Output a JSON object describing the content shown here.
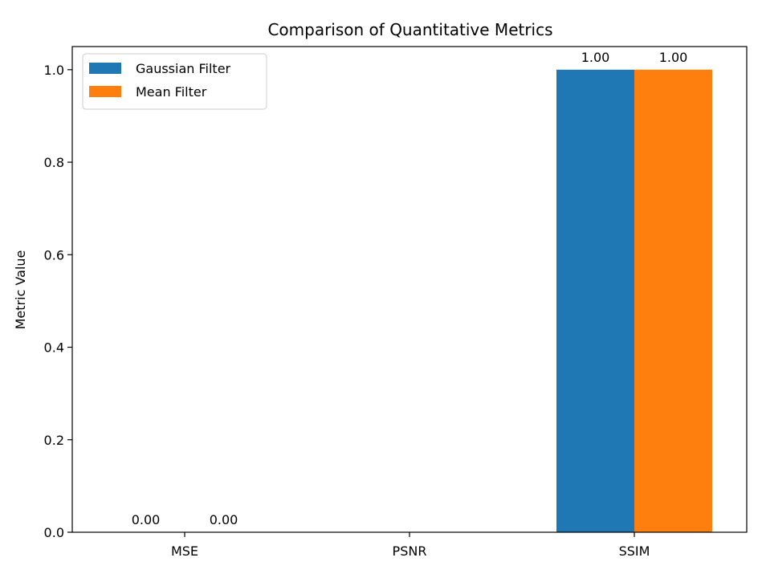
{
  "chart_data": {
    "type": "bar",
    "title": "Comparison of Quantitative Metrics",
    "xlabel": "",
    "ylabel": "Metric Value",
    "categories": [
      "MSE",
      "PSNR",
      "SSIM"
    ],
    "series": [
      {
        "name": "Gaussian Filter",
        "color": "#1f77b4",
        "values": [
          0.0,
          null,
          1.0
        ],
        "labels": [
          "0.00",
          "",
          "1.00"
        ]
      },
      {
        "name": "Mean Filter",
        "color": "#ff7f0e",
        "values": [
          0.0,
          null,
          1.0
        ],
        "labels": [
          "0.00",
          "",
          "1.00"
        ]
      }
    ],
    "ylim": [
      0,
      1.05
    ],
    "yticks": [
      0.0,
      0.2,
      0.4,
      0.6,
      0.8,
      1.0
    ],
    "ytick_labels": [
      "0.0",
      "0.2",
      "0.4",
      "0.6",
      "0.8",
      "1.0"
    ],
    "grid": false,
    "legend_position": "top-left"
  }
}
